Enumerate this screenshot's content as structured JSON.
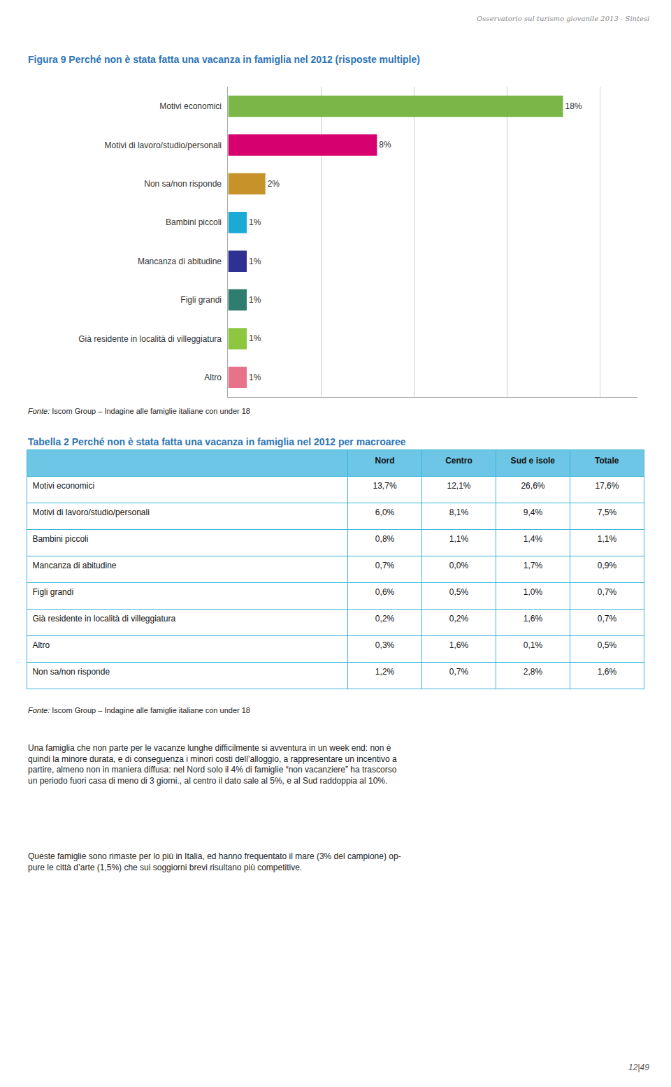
{
  "header": "Osservatorio sul turismo giovanile 2013 - Sintesi",
  "chart_data": [
    {
      "type": "bar",
      "orientation": "horizontal",
      "title": "Figura 9 Perché non è stata fatta una vacanza in famiglia nel 2012 (risposte multiple)",
      "categories": [
        "Motivi economici",
        "Motivi di lavoro/studio/personali",
        "Non sa/non risponde",
        "Bambini piccoli",
        "Mancanza di abitudine",
        "Figli grandi",
        "Già residente in località di villeggiatura",
        "Altro"
      ],
      "values": [
        18,
        8,
        2,
        1,
        1,
        1,
        1,
        1
      ],
      "value_labels": [
        "18%",
        "8%",
        "2%",
        "1%",
        "1%",
        "1%",
        "1%",
        "1%"
      ],
      "data_labels": true,
      "colors": [
        "#7ab648",
        "#d6006e",
        "#c8922a",
        "#1baad4",
        "#2e3192",
        "#2e7d6e",
        "#8dc63f",
        "#e8728a"
      ],
      "xlim": [
        0,
        22
      ],
      "xticks": [
        5,
        10,
        15,
        20
      ],
      "grid": true,
      "tick_labels": "y",
      "source": [
        "Fonte:",
        " Iscom Group – Indagine alle famiglie italiane con under 18"
      ]
    },
    {
      "type": "table",
      "title": "Tabella 2 Perché non è stata fatta una vacanza in famiglia nel 2012 per macroaree",
      "columns": [
        "",
        "Nord",
        "Centro",
        "Sud e isole",
        "Totale"
      ],
      "rows": [
        [
          "Motivi economici",
          "13,7%",
          "12,1%",
          "26,6%",
          "17,6%"
        ],
        [
          "Motivi di lavoro/studio/personali",
          "6,0%",
          "8,1%",
          "9,4%",
          "7,5%"
        ],
        [
          "Bambini piccoli",
          "0,8%",
          "1,1%",
          "1,4%",
          "1,1%"
        ],
        [
          "Mancanza di abitudine",
          "0,7%",
          "0,0%",
          "1,7%",
          "0,9%"
        ],
        [
          "Figli grandi",
          "0,6%",
          "0,5%",
          "1,0%",
          "0,7%"
        ],
        [
          "Già residente in località di villeggiatura",
          "0,2%",
          "0,2%",
          "1,6%",
          "0,7%"
        ],
        [
          "Altro",
          "0,3%",
          "1,6%",
          "0,1%",
          "0,5%"
        ],
        [
          "Non sa/non risponde",
          "1,2%",
          "0,7%",
          "2,8%",
          "1,6%"
        ]
      ],
      "header_color": "#6ec6e6",
      "border_color": "#3ab5d9",
      "source": [
        "Fonte:",
        " Iscom Group – Indagine alle famiglie italiane con under 18"
      ]
    }
  ],
  "text": [
    "Una famiglia che non parte per le vacanze lunghe difficilmente si avventura in un week end: non è\nquindi la minore durata, e di conseguenza i minori costi dell’alloggio, a rappresentare un incentivo a\npartire, almeno non in maniera diffusa: nel Nord solo il 4% di famiglie “non vacanziere” ha trascorso\nun periodo fuori casa di meno di 3 giorni., al centro il dato sale al 5%, e al Sud raddoppia al 10%.",
    "Queste famiglie sono rimaste per lo più in Italia, ed hanno frequentato il mare (3% del campione) op-\npure le città d’arte (1,5%) che sui soggiorni brevi risultano più competitive."
  ],
  "page_number": "12|49",
  "title_color": "#2e75b6"
}
